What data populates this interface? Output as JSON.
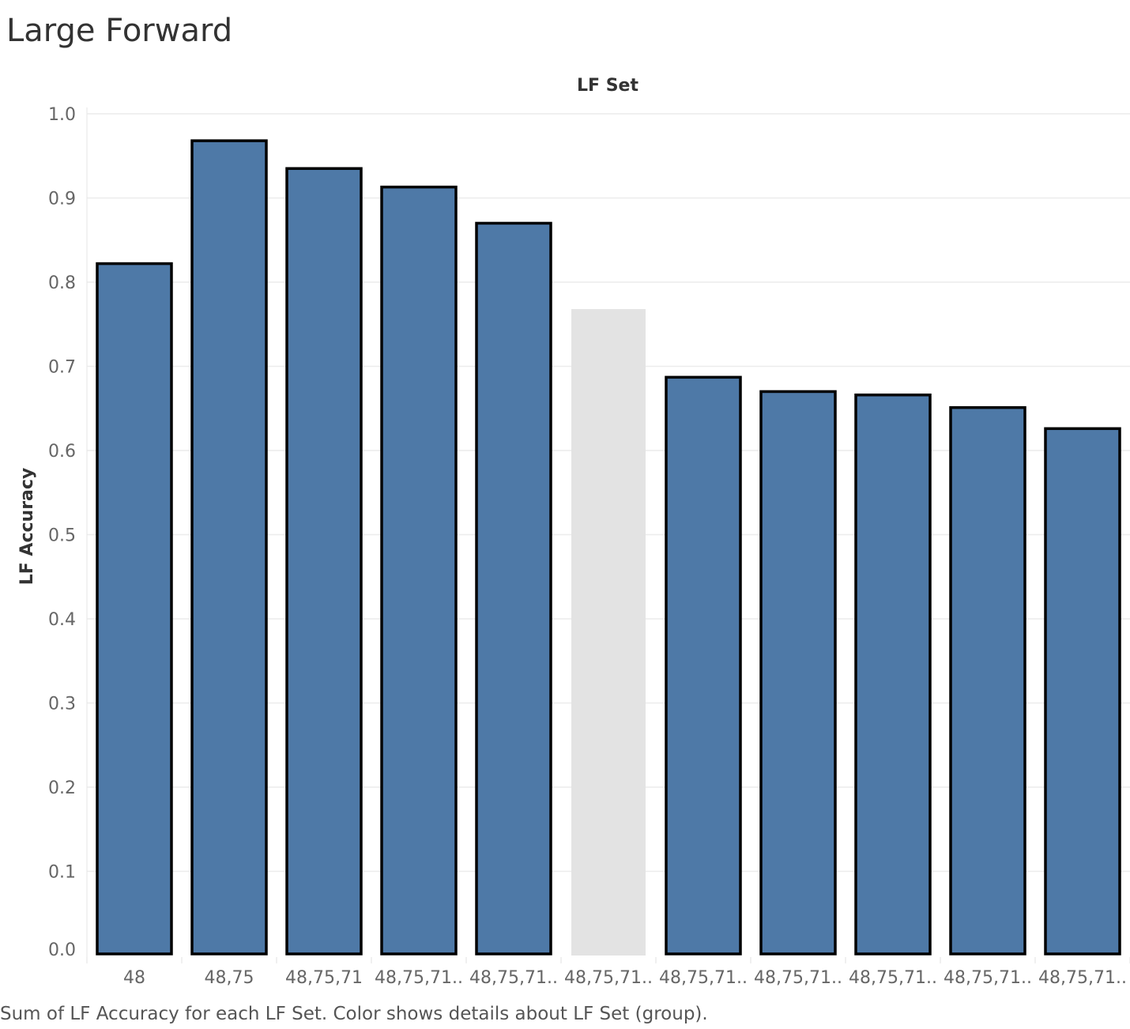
{
  "title": "Large Forward",
  "caption": "Sum of LF Accuracy for each LF Set.  Color shows details about LF Set (group).",
  "colors": {
    "bar": "#4e79a7",
    "bar_highlight": "#e3e3e3",
    "bar_border": "#000000",
    "grid": "#ececec"
  },
  "chart_data": {
    "type": "bar",
    "xlabel": "LF Set",
    "ylabel": "LF Accuracy",
    "ylim": [
      0,
      1.0
    ],
    "yticks": [
      "0.0",
      "0.1",
      "0.2",
      "0.3",
      "0.4",
      "0.5",
      "0.6",
      "0.7",
      "0.8",
      "0.9",
      "1.0"
    ],
    "grid": true,
    "categories": [
      "48",
      "48,75",
      "48,75,71",
      "48,75,71..",
      "48,75,71..",
      "48,75,71..",
      "48,75,71..",
      "48,75,71..",
      "48,75,71..",
      "48,75,71..",
      "48,75,71.."
    ],
    "values": [
      0.822,
      0.968,
      0.935,
      0.913,
      0.87,
      0.768,
      0.687,
      0.67,
      0.666,
      0.651,
      0.626
    ],
    "highlighted": [
      false,
      false,
      false,
      false,
      false,
      true,
      false,
      false,
      false,
      false,
      false
    ]
  }
}
